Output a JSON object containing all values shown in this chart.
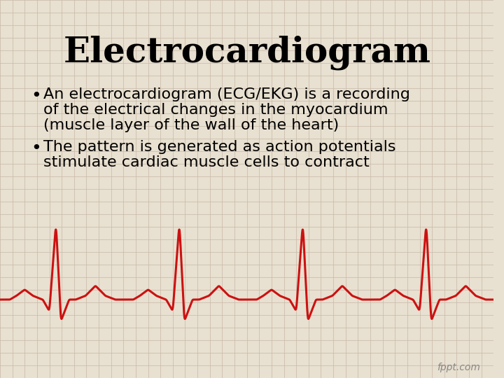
{
  "title": "Electrocardiogram",
  "title_fontsize": 36,
  "title_fontfamily": "serif",
  "bullet1_line1": "An electrocardiogram (ECG/EKG) is a recording",
  "bullet1_line2": "of the electrical changes in the myocardium",
  "bullet1_line3": "(muscle layer of the wall of the heart)",
  "bullet2_line1": "The pattern is generated as action potentials",
  "bullet2_line2": "stimulate cardiac muscle cells to contract",
  "text_fontsize": 16,
  "text_fontfamily": "sans-serif",
  "background_color": "#e8e0d0",
  "grid_color": "#c8b8a8",
  "ecg_color": "#cc1111",
  "ecg_linewidth": 2.2,
  "watermark": "fppt.com",
  "watermark_fontsize": 10
}
